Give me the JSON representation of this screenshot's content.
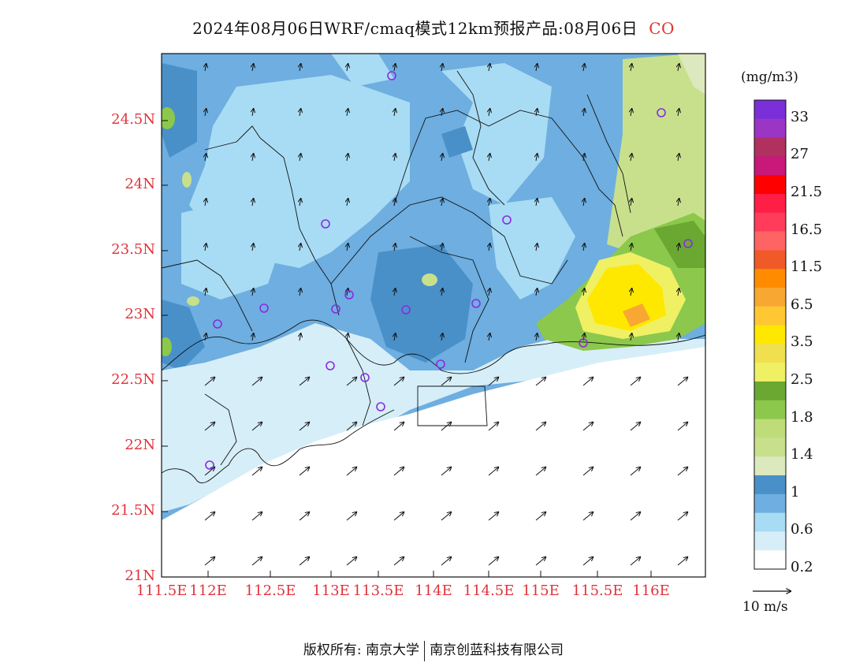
{
  "title": {
    "text": "2024年08月06日WRF/cmaq模式12km预报产品:08月06日",
    "species": "CO"
  },
  "axes": {
    "y_ticks": [
      "24.5N",
      "24N",
      "23.5N",
      "23N",
      "22.5N",
      "22N",
      "21.5N",
      "21N"
    ],
    "x_ticks": [
      "111.5E",
      "112E",
      "112.5E",
      "113E",
      "113.5E",
      "114E",
      "114.5E",
      "115E",
      "115.5E",
      "116E"
    ]
  },
  "colorbar": {
    "unit": "(mg/m3)",
    "labels": [
      "33",
      "27",
      "21.5",
      "16.5",
      "11.5",
      "6.5",
      "3.5",
      "2.5",
      "1.8",
      "1.4",
      "1",
      "0.6",
      "0.2"
    ],
    "colors": [
      "#7b2fd8",
      "#9b35c4",
      "#b03060",
      "#c8187a",
      "#ff0000",
      "#ff1e46",
      "#ff3c5a",
      "#ff6464",
      "#f05a28",
      "#ff8c00",
      "#f8a832",
      "#ffc832",
      "#ffe800",
      "#f0e050",
      "#f0f064",
      "#6aa832",
      "#8cc84b",
      "#bedc78",
      "#c8e08c",
      "#dce8be",
      "#4a90c8",
      "#6eaee0",
      "#a8dcf4",
      "#d6eef8",
      "#ffffff"
    ]
  },
  "wind_reference": "10 m/s",
  "footer": {
    "left": "版权所有: 南京大学",
    "right": "南京创蓝科技有限公司"
  },
  "stations_note": "purple circles mark monitoring stations",
  "palette": {
    "sea": "#ffffff",
    "level_02": "#d6eef8",
    "level_06": "#a8dcf4",
    "level_1": "#6eaee0",
    "level_1b": "#4a90c8",
    "level_14": "#c8e08c",
    "level_18": "#8cc84b",
    "level_25": "#f0f064",
    "level_35": "#ffe800",
    "station": "#8a2be2",
    "border": "#111111"
  }
}
